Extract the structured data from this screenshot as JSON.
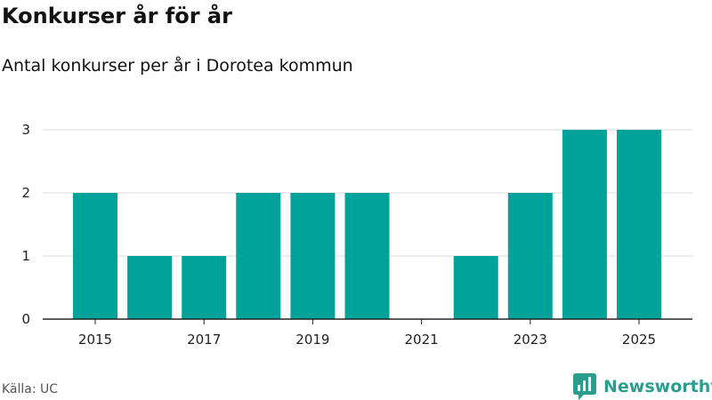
{
  "title": "Konkurser år för år",
  "subtitle": "Antal konkurser per år i Dorotea kommun",
  "source": "Källa: UC",
  "brand": {
    "name": "Newsworthy",
    "icon": "newsworthy-logo-icon"
  },
  "colors": {
    "bar": "#00a39a",
    "grid": "#d9d9d9",
    "axis": "#222222",
    "brand": "#2a9d8f"
  },
  "chart_data": {
    "type": "bar",
    "categories": [
      2015,
      2016,
      2017,
      2018,
      2019,
      2020,
      2021,
      2022,
      2023,
      2024,
      2025
    ],
    "values": [
      2,
      1,
      1,
      2,
      2,
      2,
      0,
      1,
      2,
      3,
      3
    ],
    "x_tick_labels": [
      "2015",
      "2017",
      "2019",
      "2021",
      "2023",
      "2025"
    ],
    "y_ticks": [
      0,
      1,
      2,
      3
    ],
    "ylim": [
      0,
      3
    ],
    "grid": "horizontal",
    "legend": "none",
    "xlabel": "",
    "ylabel": ""
  }
}
